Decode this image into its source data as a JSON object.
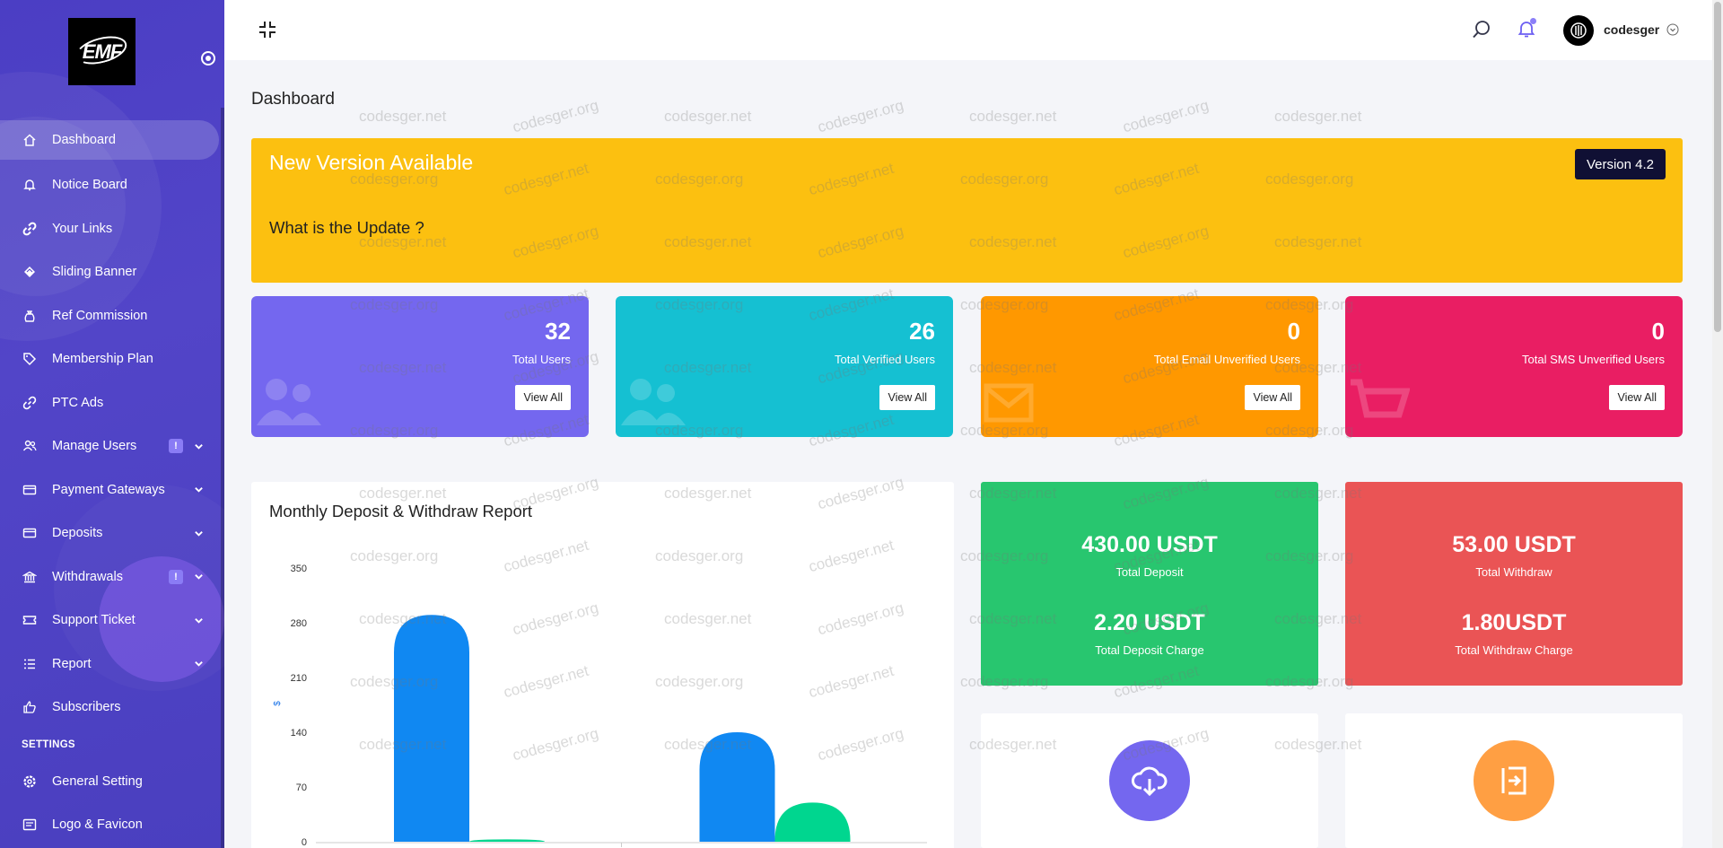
{
  "colors": {
    "sidebar": "#4b3ec4",
    "banner": "#fcc010",
    "stat_users": "#7467ef",
    "stat_verified": "#15c0d2",
    "stat_email": "#ff9800",
    "stat_sms": "#e91e63",
    "deposit": "#28c66f",
    "withdraw": "#ea5455",
    "deposit_bar": "#1088f2",
    "withdraw_bar": "#00d68f"
  },
  "sidebar": {
    "logo_text": "EMF",
    "items": [
      {
        "label": "Dashboard",
        "icon": "home-icon"
      },
      {
        "label": "Notice Board",
        "icon": "bell-icon"
      },
      {
        "label": "Your Links",
        "icon": "link-icon"
      },
      {
        "label": "Sliding Banner",
        "icon": "layers-icon"
      },
      {
        "label": "Ref Commission",
        "icon": "money-bag-icon"
      },
      {
        "label": "Membership Plan",
        "icon": "tag-icon"
      },
      {
        "label": "PTC Ads",
        "icon": "link-icon"
      },
      {
        "label": "Manage Users",
        "icon": "users-icon",
        "badge": "!"
      },
      {
        "label": "Payment Gateways",
        "icon": "card-icon"
      },
      {
        "label": "Deposits",
        "icon": "card-icon"
      },
      {
        "label": "Withdrawals",
        "icon": "bank-icon",
        "badge": "!"
      },
      {
        "label": "Support Ticket",
        "icon": "ticket-icon"
      },
      {
        "label": "Report",
        "icon": "list-icon"
      },
      {
        "label": "Subscribers",
        "icon": "thumbs-up-icon"
      }
    ],
    "settings_heading": "SETTINGS",
    "settings_items": [
      {
        "label": "General Setting",
        "icon": "gear-icon"
      },
      {
        "label": "Logo & Favicon",
        "icon": "image-icon"
      }
    ]
  },
  "topbar": {
    "username": "codesger"
  },
  "page": {
    "title": "Dashboard"
  },
  "banner": {
    "title": "New Version Available",
    "subtitle": "What is the Update ?",
    "version": "Version 4.2"
  },
  "stats": [
    {
      "value": "32",
      "label": "Total Users",
      "button": "View All"
    },
    {
      "value": "26",
      "label": "Total Verified Users",
      "button": "View All"
    },
    {
      "value": "0",
      "label": "Total Email Unverified Users",
      "button": "View All"
    },
    {
      "value": "0",
      "label": "Total SMS Unverified Users",
      "button": "View All"
    }
  ],
  "money": {
    "deposit": {
      "value": "430.00 USDT",
      "label": "Total Deposit",
      "charge": "2.20 USDT",
      "charge_label": "Total Deposit Charge"
    },
    "withdraw": {
      "value": "53.00 USDT",
      "label": "Total Withdraw",
      "charge": "1.80USDT",
      "charge_label": "Total Withdraw Charge"
    }
  },
  "chart_card": {
    "title": "Monthly Deposit & Withdraw Report"
  },
  "chart_data": {
    "type": "bar",
    "ylabel": "$",
    "ylim": [
      0,
      350
    ],
    "yticks": [
      "0",
      "70",
      "140",
      "210",
      "280",
      "350"
    ],
    "series": [
      {
        "values": [
          290,
          140
        ]
      },
      {
        "values": [
          3,
          50
        ]
      }
    ]
  },
  "watermarks": [
    "codesger.net",
    "codesger.org"
  ]
}
